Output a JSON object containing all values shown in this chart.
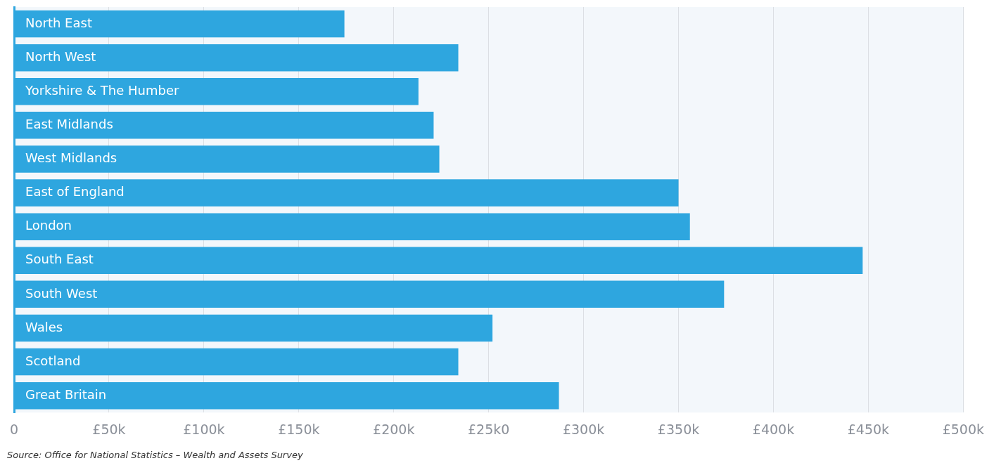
{
  "chart_data": {
    "type": "bar",
    "orientation": "horizontal",
    "categories": [
      "North East",
      "North West",
      "Yorkshire & The Humber",
      "East Midlands",
      "West Midlands",
      "East of England",
      "London",
      "South East",
      "South West",
      "Wales",
      "Scotland",
      "Great Britain"
    ],
    "values": [
      174,
      234,
      213,
      221,
      224,
      350,
      356,
      447,
      374,
      252,
      234,
      287
    ],
    "color": "#2ea6df",
    "xlim": [
      0,
      500
    ],
    "xticks": [
      0,
      {
        "value": 50,
        "label": "£50k"
      },
      {
        "value": 100,
        "label": "£100k"
      },
      {
        "value": 150,
        "label": "£150k"
      },
      {
        "value": 200,
        "label": "£200k"
      },
      {
        "value": 250,
        "label": "£25k0"
      },
      {
        "value": 300,
        "label": "£300k"
      },
      {
        "value": 350,
        "label": "£350k"
      },
      {
        "value": 400,
        "label": "£400k"
      },
      {
        "value": 450,
        "label": "£450k"
      },
      {
        "value": 500,
        "label": "£500k"
      }
    ],
    "grid": "x",
    "legend": false,
    "annotations": [
      "Source: Office for National Statistics – Wealth and Assets Survey"
    ]
  }
}
